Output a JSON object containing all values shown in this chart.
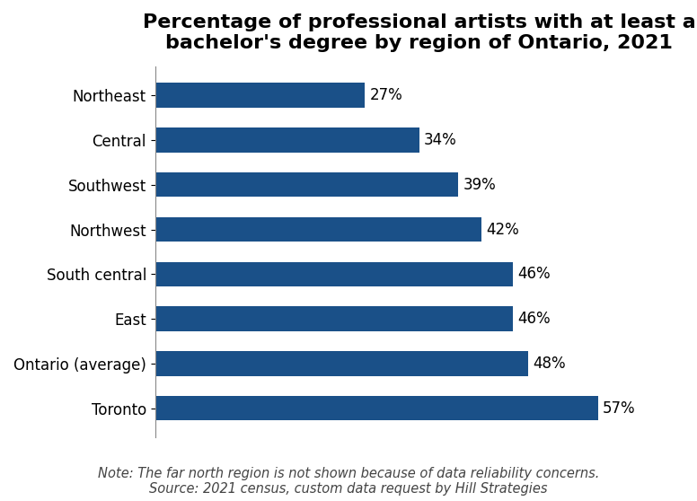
{
  "title": "Percentage of professional artists with at least a\nbachelor's degree by region of Ontario, 2021",
  "categories": [
    "Northeast",
    "Central",
    "Southwest",
    "Northwest",
    "South central",
    "East",
    "Ontario (average)",
    "Toronto"
  ],
  "values": [
    27,
    34,
    39,
    42,
    46,
    46,
    48,
    57
  ],
  "bar_color": "#1a5088",
  "label_color": "#000000",
  "background_color": "#ffffff",
  "title_fontsize": 16,
  "label_fontsize": 12,
  "tick_fontsize": 12,
  "note_line1": "Note: The far north region is not shown because of data reliability concerns.",
  "note_line2": "Source: 2021 census, custom data request by Hill Strategies",
  "note_fontsize": 10.5,
  "xlim": [
    0,
    68
  ]
}
